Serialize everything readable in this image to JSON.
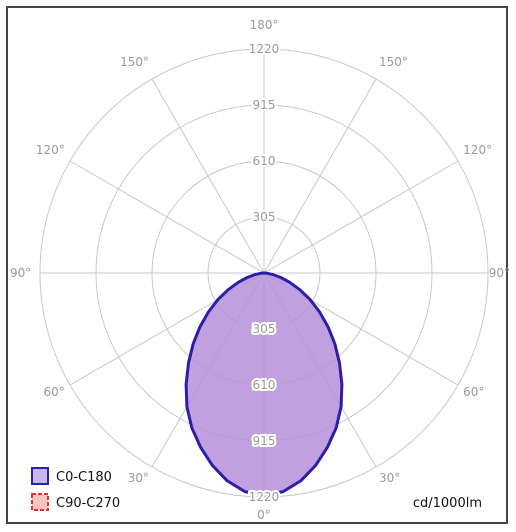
{
  "chart_data": {
    "type": "polar",
    "r_max": 1220,
    "ring_values": [
      305,
      610,
      915,
      1220
    ],
    "ring_labels": [
      "305",
      "610",
      "915",
      "1220"
    ],
    "lower_ring_labels": [
      "305",
      "610",
      "915",
      "1220"
    ],
    "angle_labels": {
      "top": "180°",
      "upper_left": "150°",
      "upper_right": "150°",
      "left_120": "120°",
      "right_120": "120°",
      "left_90": "90°",
      "right_90": "90°",
      "left_60": "60°",
      "right_60": "60°",
      "left_30": "30°",
      "right_30": "30°",
      "bottom": "0°"
    },
    "unit": "cd/1000lm",
    "series": [
      {
        "name": "C0-C180",
        "color": "#2b1fa8",
        "fill": "#b58fd8",
        "angles_deg": [
          0,
          5,
          10,
          15,
          20,
          25,
          30,
          35,
          40,
          45,
          50,
          55,
          60,
          65,
          70,
          75,
          80,
          85,
          90
        ],
        "values": [
          1210,
          1195,
          1150,
          1085,
          1010,
          930,
          840,
          740,
          640,
          545,
          455,
          370,
          290,
          215,
          150,
          95,
          50,
          18,
          0
        ]
      },
      {
        "name": "C90-C270",
        "color": "#e0312f",
        "dashed": true
      }
    ]
  }
}
